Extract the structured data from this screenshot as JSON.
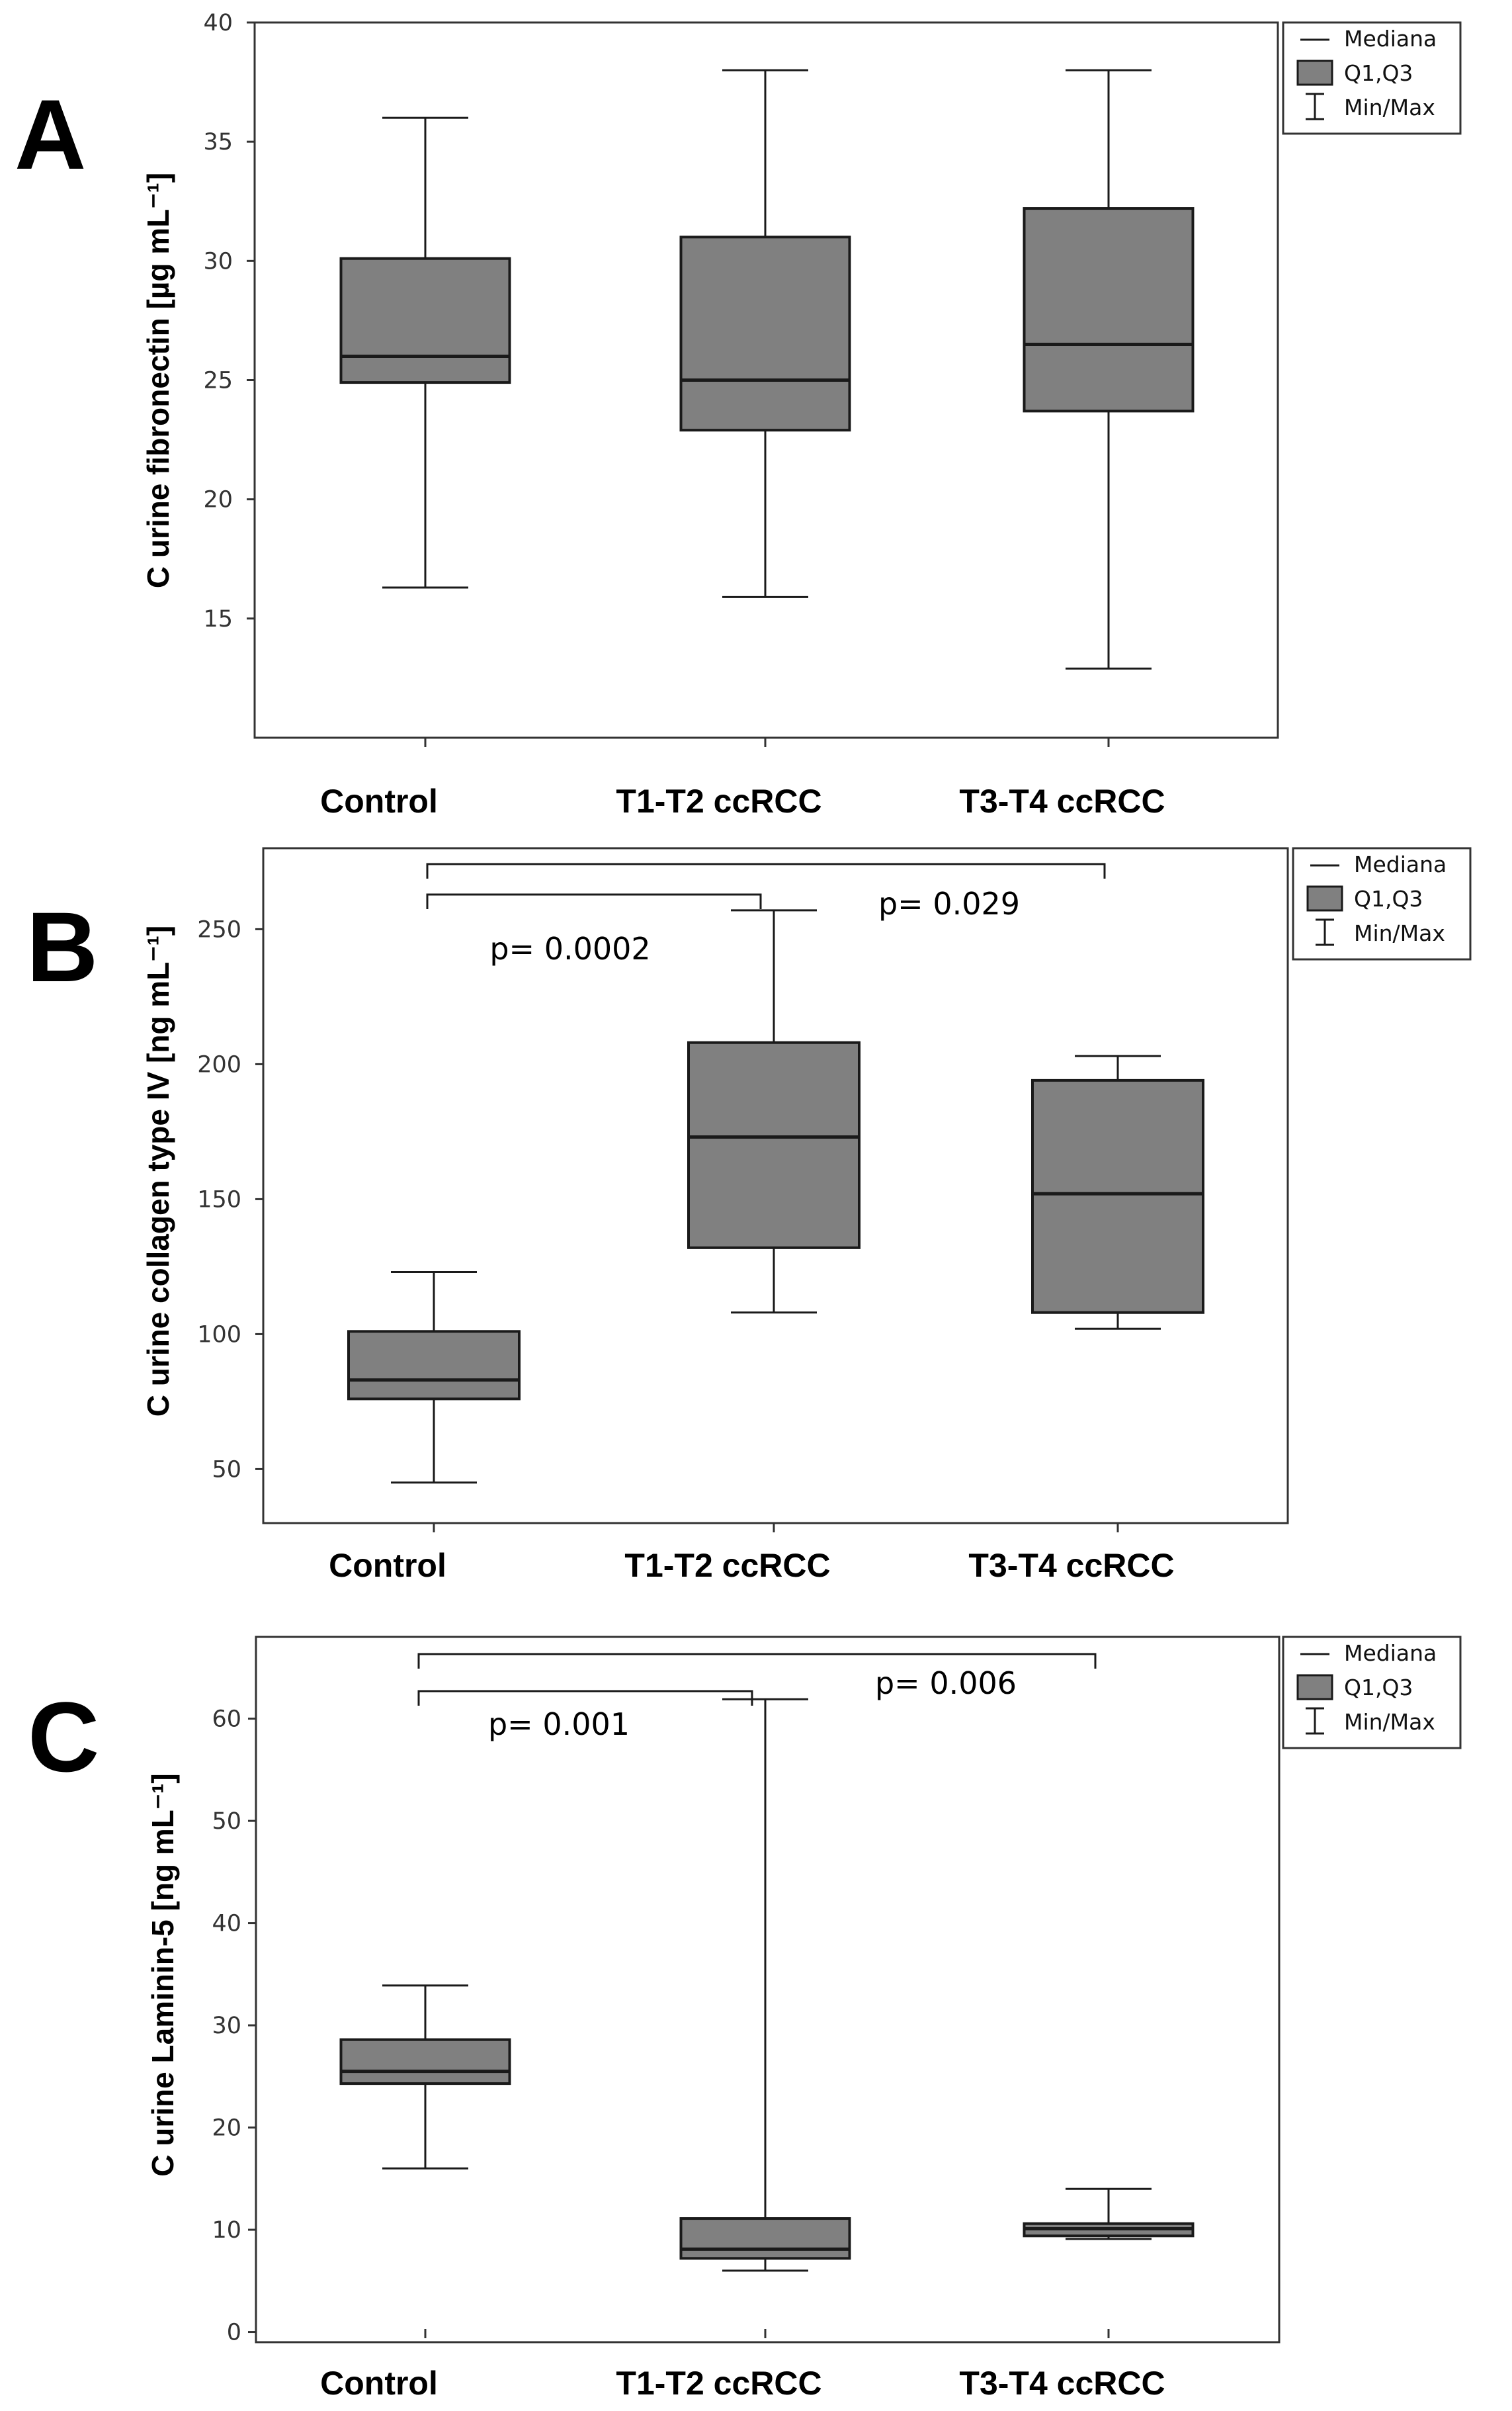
{
  "figure": {
    "colors": {
      "box_fill": "#808080",
      "stroke": "#1a1a1a",
      "frame": "#333333"
    }
  },
  "chart_data": [
    {
      "panel": "A",
      "type": "boxplot",
      "ylabel": "C urine fibronectin [µg mL⁻¹]",
      "categories": [
        "Control",
        "T1-T2 ccRCC",
        "T3-T4 ccRCC"
      ],
      "boxes": [
        {
          "min": 16.3,
          "q1": 24.9,
          "median": 26.0,
          "q3": 30.1,
          "max": 36.0
        },
        {
          "min": 15.9,
          "q1": 22.9,
          "median": 25.0,
          "q3": 31.0,
          "max": 38.0
        },
        {
          "min": 12.9,
          "q1": 23.7,
          "median": 26.5,
          "q3": 32.2,
          "max": 38.0
        }
      ],
      "ylim": [
        10,
        40
      ],
      "yticks": [
        15,
        20,
        25,
        30,
        35,
        40
      ],
      "legend": [
        "Mediana",
        "Q1,Q3",
        "Min/Max"
      ],
      "comparisons": []
    },
    {
      "panel": "B",
      "type": "boxplot",
      "ylabel": "C urine collagen type IV [ng mL⁻¹]",
      "categories": [
        "Control",
        "T1-T2 ccRCC",
        "T3-T4 ccRCC"
      ],
      "boxes": [
        {
          "min": 45,
          "q1": 76,
          "median": 83,
          "q3": 101,
          "max": 123
        },
        {
          "min": 108,
          "q1": 132,
          "median": 173,
          "q3": 208,
          "max": 257
        },
        {
          "min": 102,
          "q1": 108,
          "median": 152,
          "q3": 194,
          "max": 203
        }
      ],
      "ylim": [
        30,
        280
      ],
      "yticks": [
        50,
        100,
        150,
        200,
        250
      ],
      "legend": [
        "Mediana",
        "Q1,Q3",
        "Min/Max"
      ],
      "comparisons": [
        {
          "from": 0,
          "to": 1,
          "label": "p= 0.0002"
        },
        {
          "from": 0,
          "to": 2,
          "label": "p= 0.029"
        }
      ]
    },
    {
      "panel": "C",
      "type": "boxplot",
      "ylabel": "C urine Laminin-5 [ng mL⁻¹]",
      "categories": [
        "Control",
        "T1-T2 ccRCC",
        "T3-T4 ccRCC"
      ],
      "boxes": [
        {
          "min": 16,
          "q1": 24.3,
          "median": 25.5,
          "q3": 28.6,
          "max": 33.9
        },
        {
          "min": 6,
          "q1": 7.2,
          "median": 8.1,
          "q3": 11.1,
          "max": 61.9
        },
        {
          "min": 9.1,
          "q1": 9.4,
          "median": 10.1,
          "q3": 10.6,
          "max": 14.0
        }
      ],
      "ylim": [
        -1,
        68
      ],
      "yticks": [
        0,
        10,
        20,
        30,
        40,
        50,
        60
      ],
      "legend": [
        "Mediana",
        "Q1,Q3",
        "Min/Max"
      ],
      "comparisons": [
        {
          "from": 0,
          "to": 1,
          "label": "p= 0.001"
        },
        {
          "from": 0,
          "to": 2,
          "label": "p= 0.006"
        }
      ]
    }
  ]
}
